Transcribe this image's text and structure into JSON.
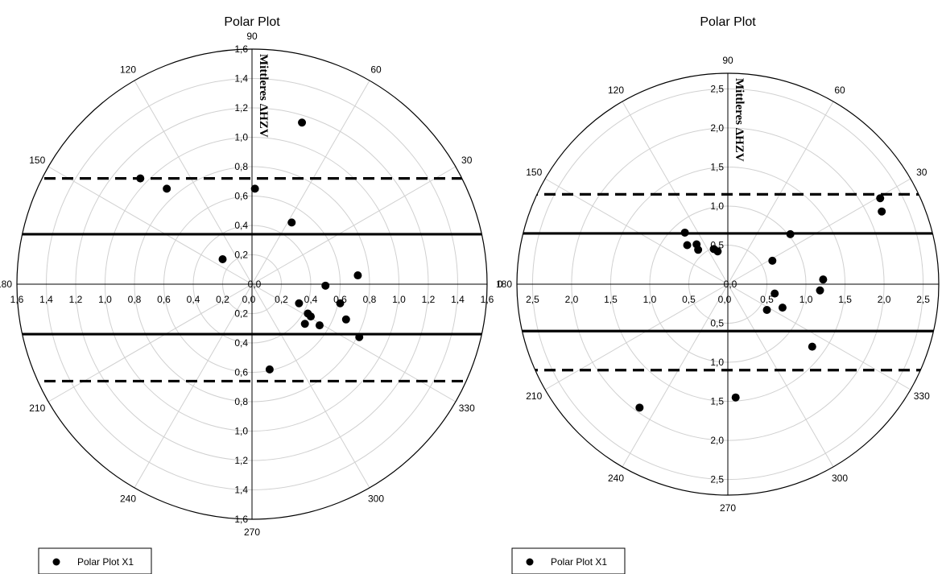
{
  "chart_data": [
    {
      "type": "scatter",
      "polar": true,
      "title": "Polar Plot",
      "ylabel": "Mittleres ΔHZV",
      "rmax": 1.6,
      "radial_ticks": [
        "0,0",
        "0,2",
        "0,4",
        "0,6",
        "0,8",
        "1,0",
        "1,2",
        "1,4",
        "1,6"
      ],
      "radial_tick_values": [
        0,
        0.2,
        0.4,
        0.6,
        0.8,
        1.0,
        1.2,
        1.4,
        1.6
      ],
      "angle_labels": [
        "0",
        "30",
        "60",
        "90",
        "120",
        "150",
        "180",
        "210",
        "240",
        "270",
        "300",
        "330"
      ],
      "grid": true,
      "legend": {
        "position": "bottom-left",
        "entries": [
          "Polar Plot X1"
        ]
      },
      "reference_lines": {
        "solid": [
          0.34,
          -0.34
        ],
        "dashed": [
          0.72,
          -0.66
        ]
      },
      "series": [
        {
          "name": "Polar Plot X1",
          "points": [
            {
              "x": 0.34,
              "y": 1.1
            },
            {
              "x": -0.76,
              "y": 0.72
            },
            {
              "x": -0.58,
              "y": 0.65
            },
            {
              "x": 0.02,
              "y": 0.65
            },
            {
              "x": 0.27,
              "y": 0.42
            },
            {
              "x": -0.2,
              "y": 0.17
            },
            {
              "x": 0.72,
              "y": 0.06
            },
            {
              "x": 0.5,
              "y": -0.01
            },
            {
              "x": 0.6,
              "y": -0.13
            },
            {
              "x": 0.32,
              "y": -0.13
            },
            {
              "x": 0.38,
              "y": -0.2
            },
            {
              "x": 0.4,
              "y": -0.22
            },
            {
              "x": 0.64,
              "y": -0.24
            },
            {
              "x": 0.36,
              "y": -0.27
            },
            {
              "x": 0.46,
              "y": -0.28
            },
            {
              "x": 0.73,
              "y": -0.36
            },
            {
              "x": 0.12,
              "y": -0.58
            }
          ]
        }
      ]
    },
    {
      "type": "scatter",
      "polar": true,
      "title": "Polar Plot",
      "ylabel": "Mittleres ΔHZV",
      "rmax": 2.7,
      "radial_ticks": [
        "0,0",
        "0,5",
        "1,0",
        "1,5",
        "2,0",
        "2,5"
      ],
      "radial_tick_values": [
        0,
        0.5,
        1.0,
        1.5,
        2.0,
        2.5
      ],
      "angle_labels": [
        "0",
        "30",
        "60",
        "90",
        "120",
        "150",
        "180",
        "210",
        "240",
        "270",
        "300",
        "330"
      ],
      "grid": true,
      "legend": {
        "position": "bottom-left",
        "entries": [
          "Polar Plot X1"
        ]
      },
      "reference_lines": {
        "solid": [
          0.65,
          -0.6
        ],
        "dashed": [
          1.15,
          -1.1
        ]
      },
      "series": [
        {
          "name": "Polar Plot X1",
          "points": [
            {
              "x": 1.95,
              "y": 1.1
            },
            {
              "x": 1.97,
              "y": 0.93
            },
            {
              "x": 0.8,
              "y": 0.64
            },
            {
              "x": -0.55,
              "y": 0.66
            },
            {
              "x": -0.52,
              "y": 0.5
            },
            {
              "x": -0.4,
              "y": 0.51
            },
            {
              "x": -0.38,
              "y": 0.44
            },
            {
              "x": -0.18,
              "y": 0.45
            },
            {
              "x": -0.13,
              "y": 0.42
            },
            {
              "x": 0.57,
              "y": 0.3
            },
            {
              "x": 1.22,
              "y": 0.06
            },
            {
              "x": 1.18,
              "y": -0.08
            },
            {
              "x": 0.6,
              "y": -0.12
            },
            {
              "x": 0.7,
              "y": -0.3
            },
            {
              "x": 0.5,
              "y": -0.33
            },
            {
              "x": 1.08,
              "y": -0.8
            },
            {
              "x": 0.1,
              "y": -1.45
            },
            {
              "x": -1.13,
              "y": -1.58
            }
          ]
        }
      ]
    }
  ]
}
